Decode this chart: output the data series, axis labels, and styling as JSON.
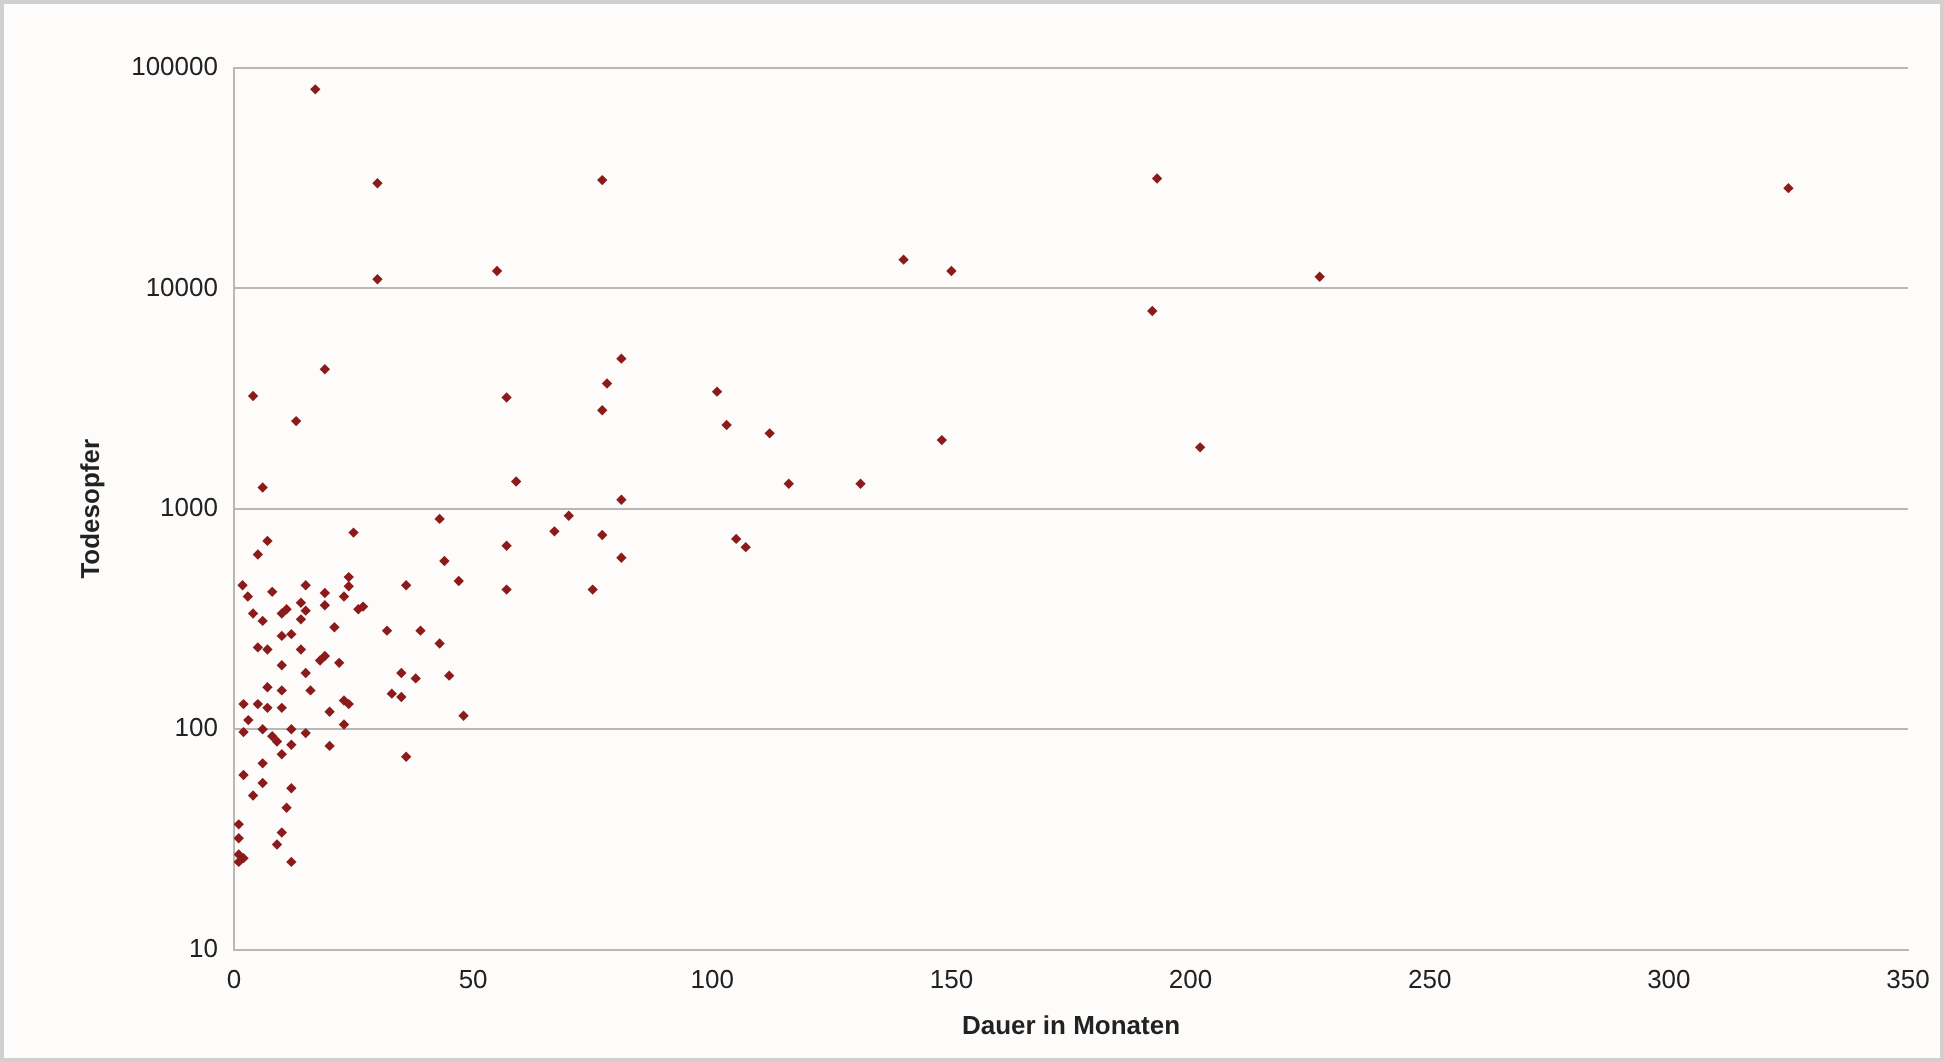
{
  "chart_data": {
    "type": "scatter",
    "xlabel": "Dauer in Monaten",
    "ylabel": "Todesopfer",
    "log": "y",
    "grid": "y",
    "marker": "diamond",
    "legend": false,
    "xlim": [
      0,
      350
    ],
    "xticks": [
      0,
      50,
      100,
      150,
      200,
      250,
      300,
      350
    ],
    "ylim": [
      10,
      100000
    ],
    "yticks": [
      10,
      100,
      1000,
      10000,
      100000
    ],
    "series": [
      {
        "color": "#8b1a1a",
        "x": [
          1.8,
          2.9,
          8,
          15,
          19,
          24,
          24,
          23,
          36,
          14,
          15,
          19,
          11,
          10,
          4,
          6,
          14,
          26,
          27,
          21,
          32,
          39,
          43,
          10,
          12,
          5,
          7,
          14,
          19,
          18,
          22,
          10,
          15,
          35,
          38,
          7,
          10,
          16,
          33,
          35,
          2,
          5,
          7,
          10,
          23,
          24,
          20,
          3,
          23,
          2,
          6,
          12,
          15,
          8,
          9,
          12,
          10,
          20,
          36,
          6,
          2,
          6,
          4,
          12,
          11,
          1,
          10,
          1,
          9,
          1,
          2,
          1,
          12,
          19,
          4,
          13,
          6,
          43,
          7,
          5,
          25,
          44,
          55,
          81,
          78,
          57,
          77,
          59,
          81,
          70,
          67,
          57,
          77,
          81,
          47,
          57,
          75,
          45,
          48,
          17,
          30,
          30,
          77,
          193,
          192,
          325,
          227,
          140,
          150,
          101,
          103,
          112,
          116,
          131,
          148,
          202,
          105,
          107
        ],
        "values": [
          450,
          400,
          420,
          450,
          415,
          490,
          445,
          400,
          450,
          375,
          345,
          365,
          350,
          335,
          335,
          310,
          315,
          350,
          360,
          290,
          280,
          280,
          245,
          265,
          270,
          235,
          230,
          230,
          215,
          205,
          200,
          195,
          180,
          180,
          170,
          155,
          150,
          150,
          145,
          140,
          130,
          130,
          125,
          125,
          135,
          130,
          120,
          110,
          105,
          97,
          100,
          100,
          96,
          93,
          88,
          85,
          77,
          84,
          75,
          70,
          62,
          57,
          50,
          54,
          44,
          37,
          34,
          32,
          30,
          27,
          26,
          25,
          25,
          4300,
          3250,
          2500,
          1250,
          900,
          715,
          620,
          780,
          580,
          12000,
          4800,
          3700,
          3200,
          2800,
          1330,
          1100,
          930,
          790,
          680,
          760,
          600,
          470,
          430,
          430,
          175,
          115,
          80000,
          30000,
          11000,
          31000,
          31500,
          7900,
          28500,
          11300,
          13500,
          12000,
          3400,
          2400,
          2200,
          1300,
          1300,
          2050,
          1900,
          730,
          670
        ]
      }
    ]
  }
}
